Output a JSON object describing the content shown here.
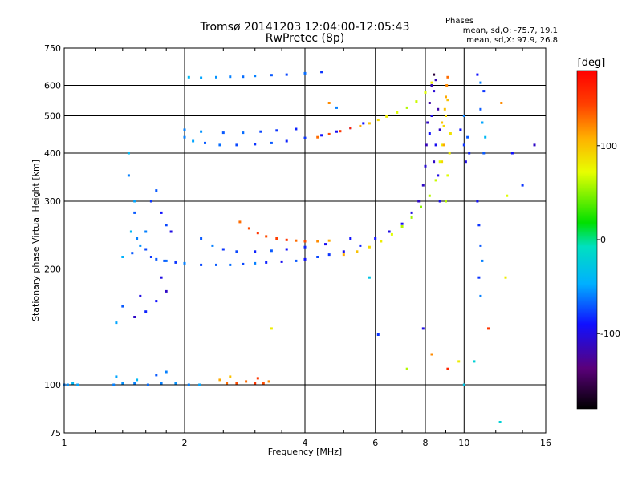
{
  "title_line1": "Tromsø 20141203 12:04:00-12:05:43",
  "title_line2": "RwPretec (8p)",
  "stats": {
    "header": "Phases",
    "line1": "mean, sd,O: -75.7, 19.1",
    "line2": "mean, sd,X:  97.9, 26.8"
  },
  "colorbar": {
    "label": "[deg]",
    "ticks": [
      "100",
      "0",
      "-100"
    ],
    "tick_values": [
      100,
      0,
      -100
    ],
    "range": [
      -180,
      180
    ]
  },
  "chart_data": {
    "type": "scatter",
    "xlabel": "Frequency [MHz]",
    "ylabel": "Stationary phase Virtual Height [km]",
    "xscale": "log",
    "yscale": "log",
    "xlim": [
      1,
      16
    ],
    "ylim": [
      75,
      750
    ],
    "xticks": [
      "1",
      "2",
      "4",
      "6",
      "8",
      "10",
      "16"
    ],
    "xtick_values": [
      1,
      2,
      4,
      6,
      8,
      10,
      16
    ],
    "yticks": [
      "75",
      "100",
      "200",
      "300",
      "400",
      "500",
      "600",
      "750"
    ],
    "ytick_values": [
      75,
      100,
      200,
      300,
      400,
      500,
      600,
      750
    ],
    "grid": true,
    "series": [
      {
        "color_by": "phase",
        "points": [
          [
            1.0,
            100,
            -60
          ],
          [
            1.02,
            100,
            -55
          ],
          [
            1.05,
            101,
            -40
          ],
          [
            1.08,
            100,
            -50
          ],
          [
            1.33,
            100,
            -60
          ],
          [
            1.4,
            101,
            -55
          ],
          [
            1.5,
            101,
            -60
          ],
          [
            1.62,
            100,
            -65
          ],
          [
            1.75,
            101,
            -60
          ],
          [
            1.9,
            101,
            -55
          ],
          [
            2.05,
            100,
            -60
          ],
          [
            2.18,
            100,
            -50
          ],
          [
            1.35,
            105,
            -50
          ],
          [
            1.52,
            103,
            -40
          ],
          [
            1.7,
            106,
            -70
          ],
          [
            1.8,
            108,
            -60
          ],
          [
            2.45,
            103,
            110
          ],
          [
            2.55,
            101,
            130
          ],
          [
            2.7,
            101,
            140
          ],
          [
            2.85,
            102,
            130
          ],
          [
            3.0,
            101,
            150
          ],
          [
            3.15,
            101,
            140
          ],
          [
            3.25,
            102,
            120
          ],
          [
            2.6,
            105,
            100
          ],
          [
            3.05,
            104,
            150
          ]
        ]
      },
      {
        "color_by": "phase",
        "points": [
          [
            1.45,
            400,
            -40
          ],
          [
            1.45,
            350,
            -60
          ],
          [
            1.5,
            300,
            -50
          ],
          [
            1.5,
            280,
            -70
          ],
          [
            1.47,
            250,
            -40
          ],
          [
            1.52,
            240,
            -60
          ],
          [
            1.55,
            230,
            -55
          ],
          [
            1.48,
            220,
            -70
          ],
          [
            1.4,
            215,
            -45
          ],
          [
            1.6,
            225,
            -75
          ],
          [
            1.65,
            215,
            -80
          ],
          [
            1.7,
            212,
            -70
          ],
          [
            1.8,
            210,
            -65
          ],
          [
            1.9,
            208,
            -80
          ],
          [
            2.0,
            207,
            -60
          ],
          [
            2.2,
            205,
            -75
          ],
          [
            2.4,
            205,
            -70
          ],
          [
            2.6,
            205,
            -65
          ],
          [
            2.8,
            206,
            -75
          ],
          [
            3.0,
            207,
            -60
          ],
          [
            3.2,
            208,
            -85
          ],
          [
            3.5,
            209,
            -95
          ],
          [
            3.8,
            210,
            -70
          ],
          [
            4.0,
            212,
            -90
          ],
          [
            4.3,
            215,
            -75
          ],
          [
            4.6,
            218,
            -80
          ],
          [
            5.0,
            222,
            -95
          ],
          [
            5.5,
            230,
            -85
          ],
          [
            6.0,
            240,
            -90
          ],
          [
            6.5,
            250,
            -100
          ],
          [
            7.0,
            262,
            -95
          ],
          [
            7.4,
            280,
            -100
          ],
          [
            7.7,
            300,
            -110
          ],
          [
            7.9,
            330,
            -110
          ],
          [
            8.0,
            370,
            -105
          ],
          [
            8.05,
            420,
            -115
          ],
          [
            8.1,
            480,
            -110
          ],
          [
            8.2,
            540,
            -120
          ],
          [
            8.3,
            600,
            -115
          ],
          [
            8.4,
            640,
            -160
          ]
        ]
      },
      {
        "color_by": "phase",
        "points": [
          [
            2.2,
            240,
            -70
          ],
          [
            2.35,
            230,
            -60
          ],
          [
            2.5,
            225,
            -80
          ],
          [
            2.7,
            222,
            -75
          ],
          [
            3.0,
            222,
            -85
          ],
          [
            3.3,
            223,
            -70
          ],
          [
            3.6,
            225,
            -90
          ],
          [
            4.0,
            228,
            -85
          ],
          [
            4.5,
            232,
            -95
          ],
          [
            5.2,
            240,
            -90
          ]
        ]
      },
      {
        "color_by": "phase",
        "points": [
          [
            1.6,
            250,
            -60
          ],
          [
            1.65,
            300,
            -80
          ],
          [
            1.7,
            320,
            -70
          ],
          [
            1.75,
            280,
            -90
          ],
          [
            1.8,
            260,
            -75
          ],
          [
            1.85,
            250,
            -100
          ],
          [
            1.75,
            190,
            -100
          ],
          [
            1.8,
            175,
            -110
          ],
          [
            1.7,
            165,
            -90
          ],
          [
            1.55,
            170,
            -100
          ],
          [
            1.6,
            155,
            -85
          ],
          [
            1.4,
            160,
            -70
          ],
          [
            1.35,
            145,
            -50
          ],
          [
            1.5,
            150,
            -110
          ],
          [
            1.78,
            210,
            -70
          ]
        ]
      },
      {
        "color_by": "phase",
        "points": [
          [
            2.75,
            265,
            130
          ],
          [
            2.9,
            255,
            140
          ],
          [
            3.05,
            248,
            150
          ],
          [
            3.2,
            243,
            140
          ],
          [
            3.4,
            240,
            145
          ],
          [
            3.6,
            238,
            150
          ],
          [
            3.8,
            237,
            130
          ],
          [
            4.0,
            236,
            140
          ],
          [
            4.3,
            236,
            120
          ],
          [
            4.6,
            237,
            110
          ]
        ]
      },
      {
        "color_by": "phase",
        "points": [
          [
            5.0,
            218,
            110
          ],
          [
            5.4,
            222,
            100
          ],
          [
            5.8,
            228,
            90
          ],
          [
            6.2,
            236,
            80
          ],
          [
            6.6,
            246,
            70
          ],
          [
            7.0,
            258,
            60
          ],
          [
            7.4,
            272,
            55
          ],
          [
            7.8,
            290,
            50
          ],
          [
            8.2,
            310,
            60
          ],
          [
            8.5,
            340,
            65
          ],
          [
            8.7,
            380,
            70
          ],
          [
            8.8,
            420,
            80
          ],
          [
            8.9,
            470,
            90
          ],
          [
            8.95,
            520,
            100
          ],
          [
            9.0,
            560,
            110
          ],
          [
            9.05,
            600,
            120
          ],
          [
            9.1,
            630,
            130
          ],
          [
            9.0,
            300,
            60
          ],
          [
            9.1,
            350,
            70
          ],
          [
            9.2,
            400,
            80
          ],
          [
            9.25,
            450,
            85
          ]
        ]
      },
      {
        "color_by": "phase",
        "points": [
          [
            2.0,
            440,
            -60
          ],
          [
            2.1,
            430,
            -50
          ],
          [
            2.25,
            425,
            -70
          ],
          [
            2.45,
            420,
            -65
          ],
          [
            2.7,
            420,
            -75
          ],
          [
            3.0,
            422,
            -80
          ],
          [
            3.3,
            425,
            -70
          ],
          [
            3.6,
            430,
            -85
          ],
          [
            4.0,
            438,
            -80
          ],
          [
            4.4,
            445,
            -90
          ],
          [
            4.8,
            455,
            -95
          ],
          [
            5.2,
            465,
            -100
          ],
          [
            5.6,
            478,
            -90
          ]
        ]
      },
      {
        "color_by": "phase",
        "points": [
          [
            2.0,
            460,
            -60
          ],
          [
            2.2,
            455,
            -55
          ],
          [
            2.5,
            452,
            -70
          ],
          [
            2.8,
            452,
            -65
          ],
          [
            3.1,
            455,
            -75
          ],
          [
            3.4,
            458,
            -80
          ],
          [
            3.8,
            462,
            -85
          ]
        ]
      },
      {
        "color_by": "phase",
        "points": [
          [
            4.3,
            440,
            130
          ],
          [
            4.6,
            448,
            140
          ],
          [
            4.9,
            456,
            150
          ],
          [
            5.2,
            465,
            160
          ]
        ]
      },
      {
        "color_by": "phase",
        "points": [
          [
            5.5,
            470,
            110
          ],
          [
            5.8,
            478,
            100
          ],
          [
            6.1,
            488,
            90
          ],
          [
            6.4,
            498,
            80
          ],
          [
            6.8,
            510,
            70
          ],
          [
            7.2,
            525,
            60
          ],
          [
            7.6,
            545,
            65
          ],
          [
            8.0,
            575,
            70
          ],
          [
            8.3,
            610,
            80
          ]
        ]
      },
      {
        "color_by": "phase",
        "points": [
          [
            2.05,
            630,
            -40
          ],
          [
            2.2,
            628,
            -50
          ],
          [
            2.4,
            630,
            -55
          ],
          [
            2.6,
            632,
            -60
          ],
          [
            2.8,
            632,
            -65
          ],
          [
            3.0,
            635,
            -60
          ],
          [
            3.3,
            638,
            -70
          ],
          [
            3.6,
            640,
            -75
          ],
          [
            4.0,
            645,
            -65
          ],
          [
            4.4,
            650,
            -80
          ]
        ]
      },
      {
        "color_by": "phase",
        "points": [
          [
            8.2,
            450,
            -90
          ],
          [
            8.3,
            500,
            -100
          ],
          [
            8.4,
            380,
            -110
          ],
          [
            8.5,
            420,
            -95
          ],
          [
            8.6,
            350,
            -100
          ],
          [
            8.6,
            520,
            -120
          ],
          [
            8.7,
            460,
            -110
          ],
          [
            8.7,
            300,
            -95
          ],
          [
            8.8,
            480,
            100
          ],
          [
            8.8,
            380,
            90
          ],
          [
            8.9,
            420,
            110
          ],
          [
            9.0,
            500,
            90
          ],
          [
            9.1,
            550,
            100
          ],
          [
            8.4,
            580,
            -105
          ],
          [
            8.5,
            620,
            -115
          ]
        ]
      },
      {
        "color_by": "phase",
        "points": [
          [
            9.8,
            460,
            -90
          ],
          [
            10.0,
            420,
            -80
          ],
          [
            10.1,
            380,
            -100
          ],
          [
            10.2,
            440,
            -70
          ],
          [
            10.0,
            500,
            -60
          ],
          [
            10.3,
            400,
            -85
          ]
        ]
      },
      {
        "color_by": "phase",
        "points": [
          [
            10.8,
            640,
            -90
          ],
          [
            11.0,
            610,
            -60
          ],
          [
            11.2,
            580,
            -80
          ],
          [
            11.0,
            520,
            -70
          ],
          [
            11.1,
            480,
            -50
          ],
          [
            11.3,
            440,
            -40
          ],
          [
            11.2,
            400,
            -70
          ],
          [
            10.8,
            300,
            -90
          ],
          [
            10.9,
            260,
            -80
          ],
          [
            11.0,
            230,
            -70
          ],
          [
            11.1,
            210,
            -60
          ],
          [
            10.9,
            190,
            -80
          ],
          [
            11.0,
            170,
            -60
          ]
        ]
      },
      {
        "color_by": "phase",
        "points": [
          [
            5.8,
            190,
            -30
          ],
          [
            6.1,
            135,
            -80
          ],
          [
            7.2,
            110,
            60
          ],
          [
            8.3,
            120,
            120
          ],
          [
            9.1,
            110,
            160
          ],
          [
            9.7,
            115,
            80
          ],
          [
            10.0,
            100,
            -30
          ],
          [
            10.6,
            115,
            -20
          ],
          [
            11.5,
            140,
            150
          ],
          [
            12.3,
            80,
            -20
          ],
          [
            12.7,
            190,
            80
          ],
          [
            12.8,
            310,
            70
          ],
          [
            13.2,
            400,
            -90
          ],
          [
            14.0,
            330,
            -80
          ],
          [
            15.0,
            420,
            -110
          ],
          [
            12.4,
            540,
            120
          ],
          [
            4.6,
            540,
            120
          ],
          [
            4.8,
            525,
            -60
          ],
          [
            3.3,
            140,
            80
          ],
          [
            7.9,
            140,
            -100
          ]
        ]
      }
    ]
  }
}
